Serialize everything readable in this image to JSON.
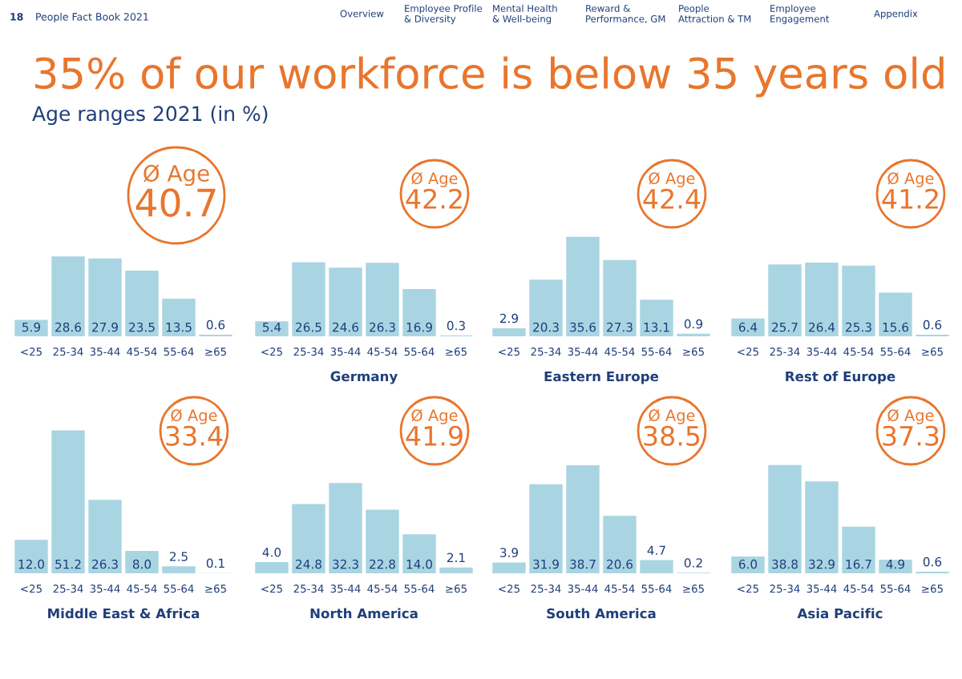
{
  "chart_data": [
    {
      "type": "bar",
      "title": "35% of our workforce is below 35 years old",
      "subtitle": "Age ranges 2021 (in %)",
      "categories": [
        "<25",
        "25-34",
        "35-44",
        "45-54",
        "55-64",
        "≥65"
      ],
      "values": [
        5.9,
        28.6,
        27.9,
        23.5,
        13.5,
        0.6
      ],
      "value_labels": [
        "5.9",
        "28.6",
        "27.9",
        "23.5",
        "13.5",
        "0.6"
      ],
      "color": "#a9d5e3",
      "annotations": [
        "Ø Age",
        "40.7",
        "18",
        "People Fact Book 2021",
        "Overview",
        "Employee Profile\n& Diversity",
        "Mental Health\n& Well-being",
        "Reward &\nPerformance, GM",
        "People\nAttraction & TM",
        "Employee\nEngagement",
        "Appendix"
      ]
    },
    {
      "type": "bar",
      "xlabel": "Germany",
      "categories": [
        "<25",
        "25-34",
        "35-44",
        "45-54",
        "55-64",
        "≥65"
      ],
      "values": [
        5.4,
        26.5,
        24.6,
        26.3,
        16.9,
        0.3
      ],
      "value_labels": [
        "5.4",
        "26.5",
        "24.6",
        "26.3",
        "16.9",
        "0.3"
      ],
      "color": "#a9d5e3",
      "annotations": [
        "Ø Age",
        "42.2"
      ]
    },
    {
      "type": "bar",
      "xlabel": "Eastern Europe",
      "categories": [
        "<25",
        "25-34",
        "35-44",
        "45-54",
        "55-64",
        "≥65"
      ],
      "values": [
        2.9,
        20.3,
        35.6,
        27.3,
        13.1,
        0.9
      ],
      "value_labels": [
        "2.9",
        "20.3",
        "35.6",
        "27.3",
        "13.1",
        "0.9"
      ],
      "color": "#a9d5e3",
      "annotations": [
        "Ø Age",
        "42.4"
      ]
    },
    {
      "type": "bar",
      "xlabel": "Rest of Europe",
      "categories": [
        "<25",
        "25-34",
        "35-44",
        "45-54",
        "55-64",
        "≥65"
      ],
      "values": [
        6.4,
        25.7,
        26.4,
        25.3,
        15.6,
        0.6
      ],
      "value_labels": [
        "6.4",
        "25.7",
        "26.4",
        "25.3",
        "15.6",
        "0.6"
      ],
      "color": "#a9d5e3",
      "annotations": [
        "Ø Age",
        "41.2"
      ]
    },
    {
      "type": "bar",
      "xlabel": "Middle East & Africa",
      "categories": [
        "<25",
        "25-34",
        "35-44",
        "45-54",
        "55-64",
        "≥65"
      ],
      "values": [
        12.0,
        51.2,
        26.3,
        8.0,
        2.5,
        0.1
      ],
      "value_labels": [
        "12.0",
        "51.2",
        "26.3",
        "8.0",
        "2.5",
        "0.1"
      ],
      "color": "#a9d5e3",
      "annotations": [
        "Ø Age",
        "33.4"
      ]
    },
    {
      "type": "bar",
      "xlabel": "North America",
      "categories": [
        "<25",
        "25-34",
        "35-44",
        "45-54",
        "55-64",
        "≥65"
      ],
      "values": [
        4.0,
        24.8,
        32.3,
        22.8,
        14.0,
        2.1
      ],
      "value_labels": [
        "4.0",
        "24.8",
        "32.3",
        "22.8",
        "14.0",
        "2.1"
      ],
      "color": "#a9d5e3",
      "annotations": [
        "Ø Age",
        "41.9"
      ]
    },
    {
      "type": "bar",
      "xlabel": "South America",
      "categories": [
        "<25",
        "25-34",
        "35-44",
        "45-54",
        "55-64",
        "≥65"
      ],
      "values": [
        3.9,
        31.9,
        38.7,
        20.6,
        4.7,
        0.2
      ],
      "value_labels": [
        "3.9",
        "31.9",
        "38.7",
        "20.6",
        "4.7",
        "0.2"
      ],
      "color": "#a9d5e3",
      "annotations": [
        "Ø Age",
        "38.5"
      ]
    },
    {
      "type": "bar",
      "xlabel": "Asia Pacific",
      "categories": [
        "<25",
        "25-34",
        "35-44",
        "45-54",
        "55-64",
        "≥65"
      ],
      "values": [
        6.0,
        38.8,
        32.9,
        16.7,
        4.9,
        0.6
      ],
      "value_labels": [
        "6.0",
        "38.8",
        "32.9",
        "16.7",
        "4.9",
        "0.6"
      ],
      "color": "#a9d5e3",
      "annotations": [
        "Ø Age",
        "37.3"
      ]
    }
  ]
}
